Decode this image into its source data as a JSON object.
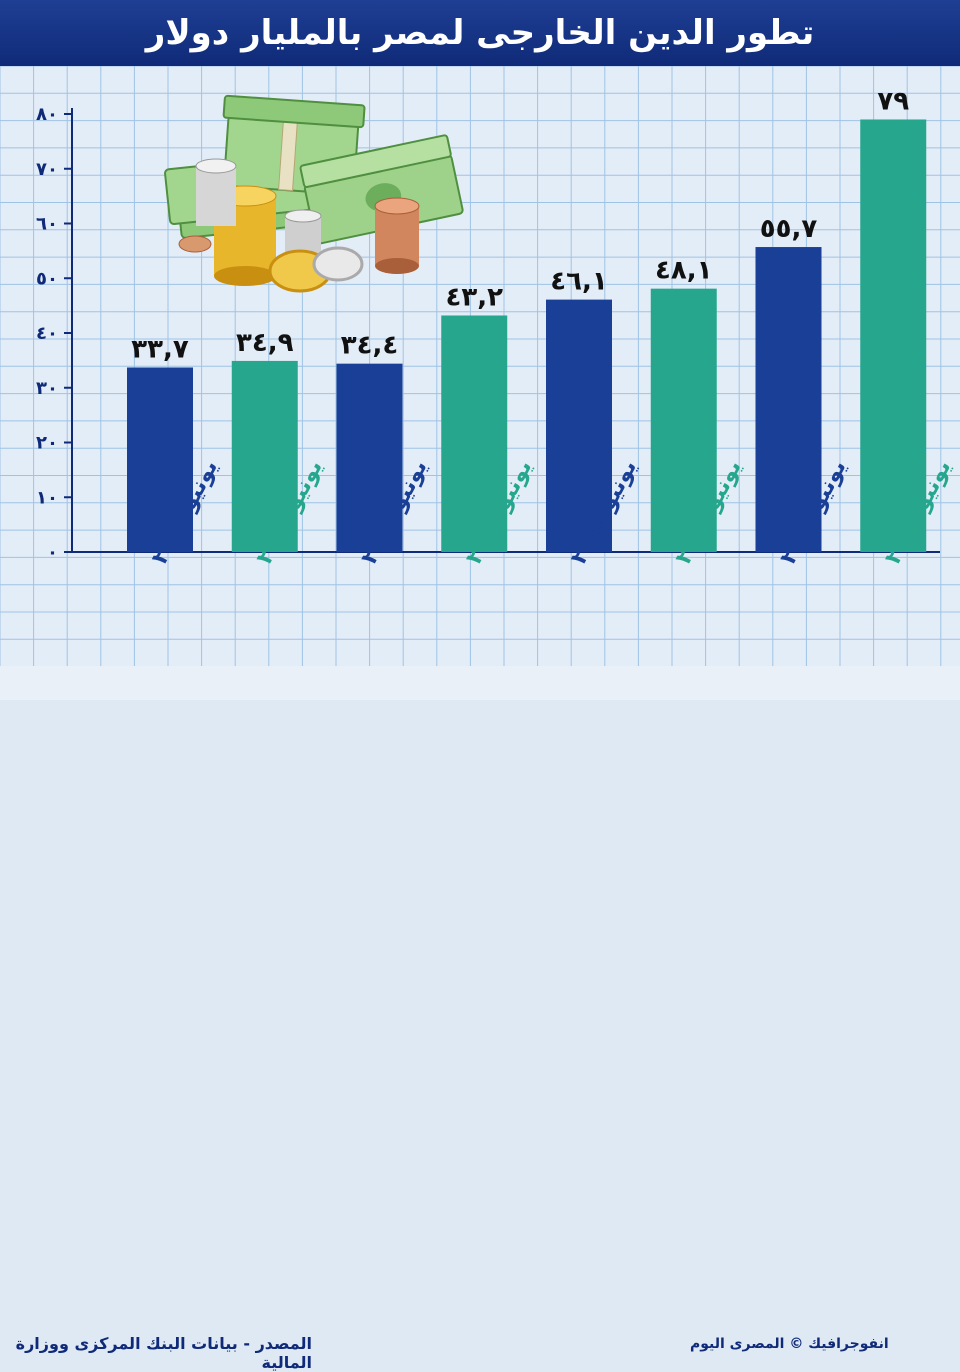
{
  "title": "تطور الدين الخارجى لمصر بالمليار دولار",
  "footer": {
    "source": "المصدر - بيانات البنك المركزى ووزارة المالية",
    "credit": "انفوجرافيك © المصرى اليوم"
  },
  "colors": {
    "blue": "#1a3f96",
    "teal": "#26a78d",
    "title_bg": "#14318a",
    "grid": "#9fc3e6"
  },
  "chart_data": {
    "type": "bar",
    "categories": [
      "يونيو ٢٠١٠",
      "يونيو ٢٠١١",
      "يونيو ٢٠١٢",
      "يونيو ٢٠١٣",
      "يونيو ٢٠١٤",
      "يونيو ٢٠١٥",
      "يونيو ٢٠١٦",
      "يونيو ٢٠١٧"
    ],
    "values": [
      33.7,
      34.9,
      34.4,
      43.2,
      46.1,
      48.1,
      55.7,
      79
    ],
    "data_labels": [
      "٣٣,٧",
      "٣٤,٩",
      "٣٤,٤",
      "٤٣,٢",
      "٤٦,١",
      "٤٨,١",
      "٥٥,٧",
      "٧٩"
    ],
    "bar_colors": [
      "blue",
      "teal",
      "blue",
      "teal",
      "blue",
      "teal",
      "blue",
      "teal"
    ],
    "ylim": [
      0,
      80
    ],
    "yticks": [
      0,
      10,
      20,
      30,
      40,
      50,
      60,
      70,
      80
    ],
    "ytick_labels": [
      "٠",
      "١٠",
      "٢٠",
      "٣٠",
      "٤٠",
      "٥٠",
      "٦٠",
      "٧٠",
      "٨٠"
    ],
    "grid": true
  }
}
